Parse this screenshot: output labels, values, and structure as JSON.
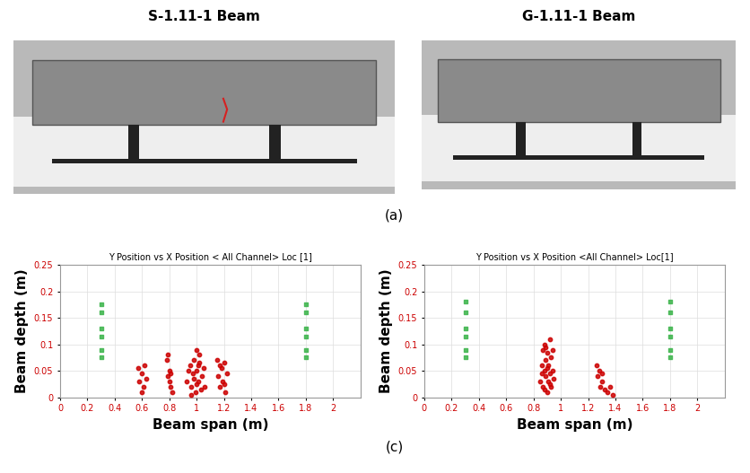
{
  "figure": {
    "photo_titles": [
      "S-1.11-1 Beam",
      "G-1.11-1 Beam"
    ],
    "panel_labels": [
      "(a)",
      "(c)"
    ]
  },
  "chart_data": [
    {
      "type": "scatter",
      "title": "Y Position vs X Position < All Channel> Loc [1]",
      "x_label": "Beam span (m)",
      "y_label": "Beam depth (m)",
      "xlim": [
        0,
        2.2
      ],
      "xticks": [
        0,
        0.2,
        0.4,
        0.6,
        0.8,
        1,
        1.2,
        1.4,
        1.6,
        1.8,
        2
      ],
      "ylim": [
        0,
        0.25
      ],
      "yticks": [
        0,
        0.05,
        0.1,
        0.15,
        0.2,
        0.25
      ],
      "grid": true,
      "series": [
        {
          "color": "#3cb44b",
          "marker": "square",
          "x": [
            0.3,
            0.3,
            0.3,
            0.3,
            0.3,
            0.3,
            1.8,
            1.8,
            1.8,
            1.8,
            1.8,
            1.8
          ],
          "values": [
            0.075,
            0.09,
            0.115,
            0.13,
            0.16,
            0.175,
            0.075,
            0.09,
            0.115,
            0.13,
            0.16,
            0.175
          ]
        },
        {
          "color": "#cc0000",
          "marker": "circle",
          "x": [
            0.57,
            0.58,
            0.6,
            0.61,
            0.62,
            0.6,
            0.63,
            0.78,
            0.79,
            0.8,
            0.81,
            0.8,
            0.82,
            0.79,
            0.81,
            0.93,
            0.95,
            0.96,
            0.97,
            0.98,
            0.99,
            1.0,
            1.0,
            1.01,
            1.02,
            1.03,
            1.04,
            1.05,
            0.98,
            1.0,
            1.02,
            0.96,
            1.06,
            0.94,
            1.01,
            1.15,
            1.16,
            1.17,
            1.18,
            1.19,
            1.2,
            1.21,
            1.22,
            1.2,
            1.17
          ],
          "values": [
            0.055,
            0.03,
            0.045,
            0.02,
            0.06,
            0.01,
            0.035,
            0.07,
            0.04,
            0.05,
            0.02,
            0.03,
            0.01,
            0.08,
            0.045,
            0.03,
            0.06,
            0.02,
            0.045,
            0.07,
            0.01,
            0.09,
            0.05,
            0.03,
            0.065,
            0.015,
            0.04,
            0.055,
            0.035,
            0.025,
            0.08,
            0.005,
            0.02,
            0.05,
            0.06,
            0.07,
            0.04,
            0.02,
            0.055,
            0.03,
            0.065,
            0.01,
            0.045,
            0.025,
            0.06
          ]
        }
      ]
    },
    {
      "type": "scatter",
      "title": "Y Position vs X Position <All Channel> Loc[1]",
      "x_label": "Beam span (m)",
      "y_label": "Beam depth (m)",
      "xlim": [
        0,
        2.2
      ],
      "xticks": [
        0,
        0.2,
        0.4,
        0.6,
        0.8,
        1,
        1.2,
        1.4,
        1.6,
        1.8,
        2
      ],
      "ylim": [
        0,
        0.25
      ],
      "yticks": [
        0,
        0.05,
        0.1,
        0.15,
        0.2,
        0.25
      ],
      "grid": true,
      "series": [
        {
          "color": "#3cb44b",
          "marker": "square",
          "x": [
            0.3,
            0.3,
            0.3,
            0.3,
            0.3,
            0.3,
            1.8,
            1.8,
            1.8,
            1.8,
            1.8,
            1.8
          ],
          "values": [
            0.075,
            0.09,
            0.115,
            0.13,
            0.16,
            0.18,
            0.075,
            0.09,
            0.115,
            0.13,
            0.16,
            0.18
          ]
        },
        {
          "color": "#cc0000",
          "marker": "circle",
          "x": [
            0.85,
            0.86,
            0.87,
            0.87,
            0.88,
            0.88,
            0.89,
            0.89,
            0.9,
            0.9,
            0.91,
            0.91,
            0.92,
            0.92,
            0.93,
            0.93,
            0.94,
            0.95,
            0.88,
            0.9,
            0.86,
            0.92,
            0.94,
            0.89,
            1.26,
            1.27,
            1.28,
            1.29,
            1.3,
            1.32,
            1.34,
            1.36,
            1.38,
            1.3
          ],
          "values": [
            0.03,
            0.06,
            0.09,
            0.02,
            0.05,
            0.1,
            0.04,
            0.07,
            0.01,
            0.085,
            0.03,
            0.06,
            0.045,
            0.11,
            0.02,
            0.075,
            0.05,
            0.035,
            0.015,
            0.055,
            0.045,
            0.025,
            0.09,
            0.095,
            0.06,
            0.04,
            0.05,
            0.02,
            0.03,
            0.015,
            0.01,
            0.02,
            0.005,
            0.045
          ]
        }
      ]
    }
  ]
}
